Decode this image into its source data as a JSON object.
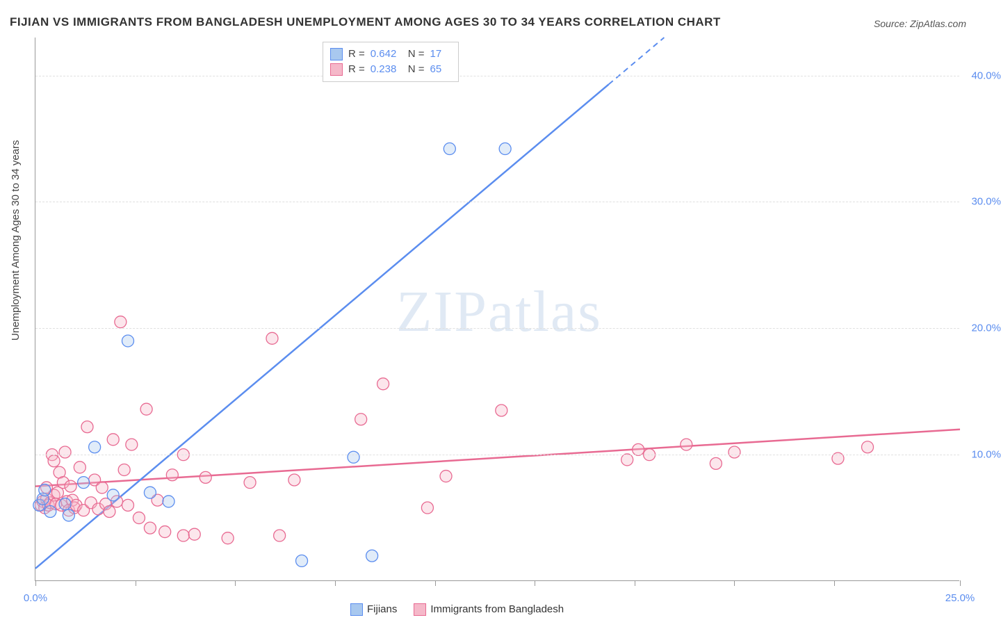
{
  "title": "FIJIAN VS IMMIGRANTS FROM BANGLADESH UNEMPLOYMENT AMONG AGES 30 TO 34 YEARS CORRELATION CHART",
  "source": "Source: ZipAtlas.com",
  "ylabel": "Unemployment Among Ages 30 to 34 years",
  "watermark": "ZIPatlas",
  "chart": {
    "type": "scatter",
    "xlim": [
      0,
      25
    ],
    "ylim": [
      0,
      43
    ],
    "x_ticks": [
      0,
      2.7,
      5.4,
      8.1,
      10.8,
      13.5,
      16.2,
      18.9,
      21.6,
      25
    ],
    "x_tick_labels": {
      "0": "0.0%",
      "25": "25.0%"
    },
    "y_gridlines": [
      10,
      20,
      30,
      40
    ],
    "y_tick_labels": {
      "10": "10.0%",
      "20": "20.0%",
      "30": "30.0%",
      "40": "40.0%"
    },
    "grid_color": "#e0e0e0",
    "axis_color": "#999999",
    "tick_label_color": "#5b8def",
    "background_color": "#ffffff",
    "marker_radius": 8.5,
    "series": [
      {
        "name": "Fijians",
        "color_fill": "#a8c8ef",
        "color_stroke": "#5b8def",
        "R": "0.642",
        "N": "17",
        "points": [
          [
            0.1,
            6.0
          ],
          [
            0.2,
            6.5
          ],
          [
            0.25,
            7.2
          ],
          [
            0.4,
            5.5
          ],
          [
            0.8,
            6.1
          ],
          [
            0.9,
            5.2
          ],
          [
            1.3,
            7.8
          ],
          [
            1.6,
            10.6
          ],
          [
            2.1,
            6.8
          ],
          [
            2.5,
            19.0
          ],
          [
            3.1,
            7.0
          ],
          [
            3.6,
            6.3
          ],
          [
            7.2,
            1.6
          ],
          [
            8.6,
            9.8
          ],
          [
            9.1,
            2.0
          ],
          [
            11.2,
            34.2
          ],
          [
            12.7,
            34.2
          ]
        ],
        "regression": {
          "x1": 0,
          "y1": 1.0,
          "x2": 17.0,
          "y2": 43.0,
          "solid_until_x": 15.5
        }
      },
      {
        "name": "Immigrants from Bangladesh",
        "color_fill": "#f5b8c9",
        "color_stroke": "#e86a92",
        "R": "0.238",
        "N": "65",
        "points": [
          [
            0.15,
            6.0
          ],
          [
            0.2,
            6.3
          ],
          [
            0.25,
            5.8
          ],
          [
            0.3,
            6.5
          ],
          [
            0.3,
            7.4
          ],
          [
            0.35,
            6.0
          ],
          [
            0.4,
            6.2
          ],
          [
            0.45,
            10.0
          ],
          [
            0.5,
            6.8
          ],
          [
            0.5,
            9.5
          ],
          [
            0.55,
            6.1
          ],
          [
            0.6,
            7.0
          ],
          [
            0.65,
            8.6
          ],
          [
            0.7,
            6.0
          ],
          [
            0.75,
            7.8
          ],
          [
            0.8,
            10.2
          ],
          [
            0.85,
            6.3
          ],
          [
            0.9,
            5.6
          ],
          [
            0.95,
            7.5
          ],
          [
            1.0,
            6.4
          ],
          [
            1.05,
            5.8
          ],
          [
            1.1,
            6.0
          ],
          [
            1.2,
            9.0
          ],
          [
            1.3,
            5.6
          ],
          [
            1.4,
            12.2
          ],
          [
            1.5,
            6.2
          ],
          [
            1.6,
            8.0
          ],
          [
            1.7,
            5.7
          ],
          [
            1.8,
            7.4
          ],
          [
            1.9,
            6.1
          ],
          [
            2.0,
            5.5
          ],
          [
            2.1,
            11.2
          ],
          [
            2.2,
            6.3
          ],
          [
            2.3,
            20.5
          ],
          [
            2.4,
            8.8
          ],
          [
            2.5,
            6.0
          ],
          [
            2.6,
            10.8
          ],
          [
            2.8,
            5.0
          ],
          [
            3.0,
            13.6
          ],
          [
            3.1,
            4.2
          ],
          [
            3.3,
            6.4
          ],
          [
            3.5,
            3.9
          ],
          [
            3.7,
            8.4
          ],
          [
            4.0,
            3.6
          ],
          [
            4.0,
            10.0
          ],
          [
            4.3,
            3.7
          ],
          [
            4.6,
            8.2
          ],
          [
            5.2,
            3.4
          ],
          [
            5.8,
            7.8
          ],
          [
            6.4,
            19.2
          ],
          [
            6.6,
            3.6
          ],
          [
            7.0,
            8.0
          ],
          [
            8.8,
            12.8
          ],
          [
            9.4,
            15.6
          ],
          [
            10.6,
            5.8
          ],
          [
            11.1,
            8.3
          ],
          [
            12.6,
            13.5
          ],
          [
            16.0,
            9.6
          ],
          [
            16.3,
            10.4
          ],
          [
            16.6,
            10.0
          ],
          [
            17.6,
            10.8
          ],
          [
            18.4,
            9.3
          ],
          [
            18.9,
            10.2
          ],
          [
            21.7,
            9.7
          ],
          [
            22.5,
            10.6
          ]
        ],
        "regression": {
          "x1": 0,
          "y1": 7.5,
          "x2": 25,
          "y2": 12.0,
          "solid_until_x": 25
        }
      }
    ]
  },
  "legend_top": {
    "rows": [
      {
        "swatch_fill": "#a8c8ef",
        "swatch_stroke": "#5b8def",
        "r_label": "R =",
        "r_val": "0.642",
        "n_label": "N =",
        "n_val": "17"
      },
      {
        "swatch_fill": "#f5b8c9",
        "swatch_stroke": "#e86a92",
        "r_label": "R =",
        "r_val": "0.238",
        "n_label": "N =",
        "n_val": "65"
      }
    ]
  },
  "legend_bottom": {
    "items": [
      {
        "swatch_fill": "#a8c8ef",
        "swatch_stroke": "#5b8def",
        "label": "Fijians"
      },
      {
        "swatch_fill": "#f5b8c9",
        "swatch_stroke": "#e86a92",
        "label": "Immigrants from Bangladesh"
      }
    ]
  }
}
